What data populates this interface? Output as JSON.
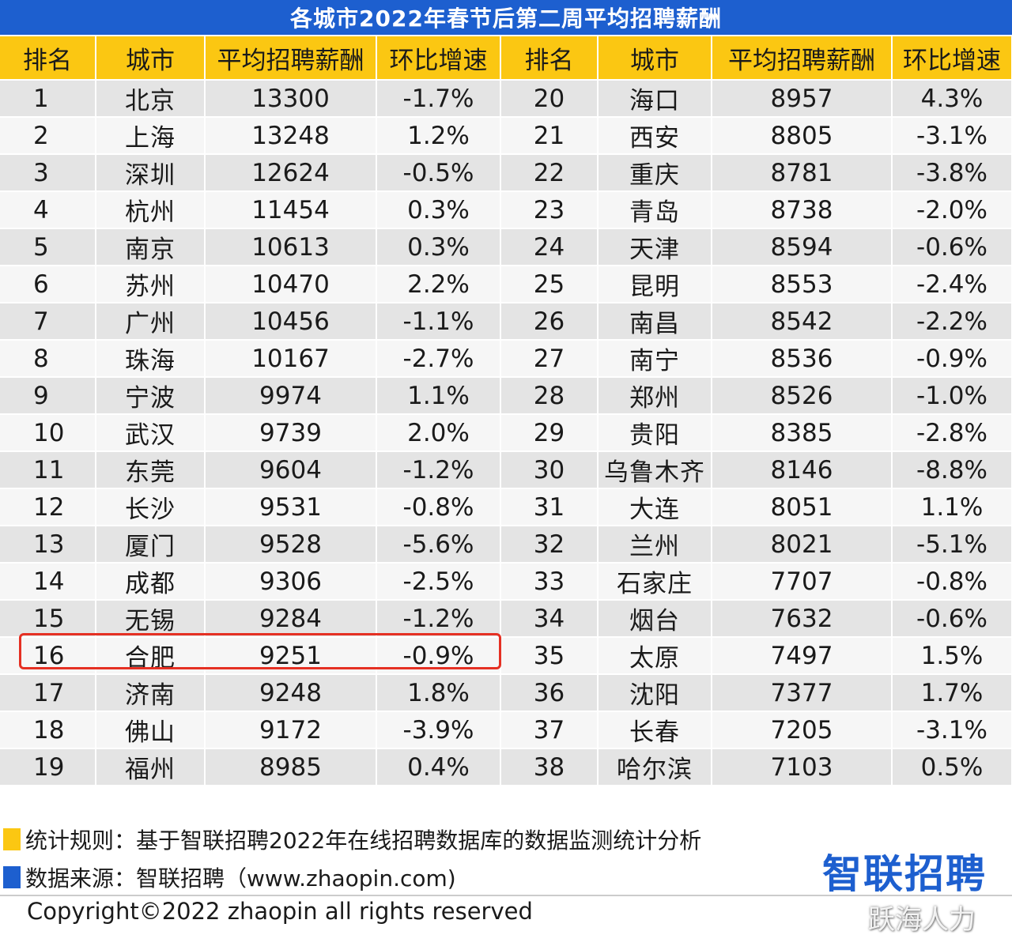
{
  "title": "各城市2022年春节后第二周平均招聘薪酬",
  "chart_data": {
    "type": "table",
    "title": "各城市2022年春节后第二周平均招聘薪酬",
    "columns": [
      "排名",
      "城市",
      "平均招聘薪酬",
      "环比增速",
      "排名",
      "城市",
      "平均招聘薪酬",
      "环比增速"
    ],
    "rows": [
      {
        "rank": "1",
        "city": "北京",
        "salary": "13300",
        "growth": "-1.7%"
      },
      {
        "rank": "2",
        "city": "上海",
        "salary": "13248",
        "growth": "1.2%"
      },
      {
        "rank": "3",
        "city": "深圳",
        "salary": "12624",
        "growth": "-0.5%"
      },
      {
        "rank": "4",
        "city": "杭州",
        "salary": "11454",
        "growth": "0.3%"
      },
      {
        "rank": "5",
        "city": "南京",
        "salary": "10613",
        "growth": "0.3%"
      },
      {
        "rank": "6",
        "city": "苏州",
        "salary": "10470",
        "growth": "2.2%"
      },
      {
        "rank": "7",
        "city": "广州",
        "salary": "10456",
        "growth": "-1.1%"
      },
      {
        "rank": "8",
        "city": "珠海",
        "salary": "10167",
        "growth": "-2.7%"
      },
      {
        "rank": "9",
        "city": "宁波",
        "salary": "9974",
        "growth": "1.1%"
      },
      {
        "rank": "10",
        "city": "武汉",
        "salary": "9739",
        "growth": "2.0%"
      },
      {
        "rank": "11",
        "city": "东莞",
        "salary": "9604",
        "growth": "-1.2%"
      },
      {
        "rank": "12",
        "city": "长沙",
        "salary": "9531",
        "growth": "-0.8%"
      },
      {
        "rank": "13",
        "city": "厦门",
        "salary": "9528",
        "growth": "-5.6%"
      },
      {
        "rank": "14",
        "city": "成都",
        "salary": "9306",
        "growth": "-2.5%"
      },
      {
        "rank": "15",
        "city": "无锡",
        "salary": "9284",
        "growth": "-1.2%"
      },
      {
        "rank": "16",
        "city": "合肥",
        "salary": "9251",
        "growth": "-0.9%"
      },
      {
        "rank": "17",
        "city": "济南",
        "salary": "9248",
        "growth": "1.8%"
      },
      {
        "rank": "18",
        "city": "佛山",
        "salary": "9172",
        "growth": "-3.9%"
      },
      {
        "rank": "19",
        "city": "福州",
        "salary": "8985",
        "growth": "0.4%"
      },
      {
        "rank": "20",
        "city": "海口",
        "salary": "8957",
        "growth": "4.3%"
      },
      {
        "rank": "21",
        "city": "西安",
        "salary": "8805",
        "growth": "-3.1%"
      },
      {
        "rank": "22",
        "city": "重庆",
        "salary": "8781",
        "growth": "-3.8%"
      },
      {
        "rank": "23",
        "city": "青岛",
        "salary": "8738",
        "growth": "-2.0%"
      },
      {
        "rank": "24",
        "city": "天津",
        "salary": "8594",
        "growth": "-0.6%"
      },
      {
        "rank": "25",
        "city": "昆明",
        "salary": "8553",
        "growth": "-2.4%"
      },
      {
        "rank": "26",
        "city": "南昌",
        "salary": "8542",
        "growth": "-2.2%"
      },
      {
        "rank": "27",
        "city": "南宁",
        "salary": "8536",
        "growth": "-0.9%"
      },
      {
        "rank": "28",
        "city": "郑州",
        "salary": "8526",
        "growth": "-1.0%"
      },
      {
        "rank": "29",
        "city": "贵阳",
        "salary": "8385",
        "growth": "-2.8%"
      },
      {
        "rank": "30",
        "city": "乌鲁木齐",
        "salary": "8146",
        "growth": "-8.8%"
      },
      {
        "rank": "31",
        "city": "大连",
        "salary": "8051",
        "growth": "1.1%"
      },
      {
        "rank": "32",
        "city": "兰州",
        "salary": "8021",
        "growth": "-5.1%"
      },
      {
        "rank": "33",
        "city": "石家庄",
        "salary": "7707",
        "growth": "-0.8%"
      },
      {
        "rank": "34",
        "city": "烟台",
        "salary": "7632",
        "growth": "-0.6%"
      },
      {
        "rank": "35",
        "city": "太原",
        "salary": "7497",
        "growth": "1.5%"
      },
      {
        "rank": "36",
        "city": "沈阳",
        "salary": "7377",
        "growth": "1.7%"
      },
      {
        "rank": "37",
        "city": "长春",
        "salary": "7205",
        "growth": "-3.1%"
      },
      {
        "rank": "38",
        "city": "哈尔滨",
        "salary": "7103",
        "growth": "0.5%"
      }
    ],
    "highlighted_rank": "16"
  },
  "colors": {
    "title_bg": "#1d5fcf",
    "header_bg": "#fbc712",
    "row_odd": "#e4e4e4",
    "row_even": "#f6f6f6",
    "highlight_border": "#e53023",
    "logo": "#1d5fcf"
  },
  "notes": {
    "rule": "统计规则：基于智联招聘2022年在线招聘数据库的数据监测统计分析",
    "source": "数据来源：智联招聘（www.zhaopin.com)"
  },
  "logo_text": "智联招聘",
  "copyright": "Copyright©2022 zhaopin all rights reserved",
  "watermark": "跃海人力"
}
